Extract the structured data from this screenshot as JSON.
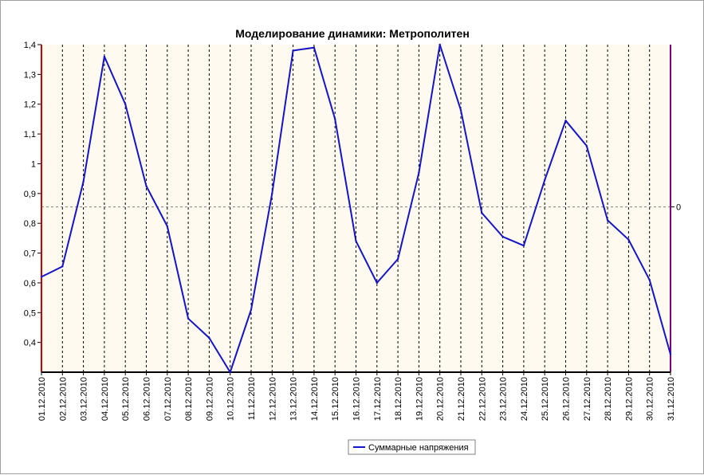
{
  "chart_data": {
    "type": "line",
    "title": "Моделирование динамики: Метрополитен",
    "xlabel": "",
    "ylabel": "",
    "ylim": [
      0.3,
      1.4
    ],
    "yticks": [
      "0,4",
      "0,5",
      "0,6",
      "0,7",
      "0,8",
      "0,9",
      "1",
      "1,1",
      "1,2",
      "1,3",
      "1,4"
    ],
    "reference_line": {
      "value": 0.855,
      "label": "0"
    },
    "grid": true,
    "legend_position": "bottom-center",
    "categories": [
      "01.12.2010",
      "02.12.2010",
      "03.12.2010",
      "04.12.2010",
      "05.12.2010",
      "06.12.2010",
      "07.12.2010",
      "08.12.2010",
      "09.12.2010",
      "10.12.2010",
      "11.12.2010",
      "12.12.2010",
      "13.12.2010",
      "14.12.2010",
      "15.12.2010",
      "16.12.2010",
      "17.12.2010",
      "18.12.2010",
      "19.12.2010",
      "20.12.2010",
      "21.12.2010",
      "22.12.2010",
      "23.12.2010",
      "24.12.2010",
      "25.12.2010",
      "26.12.2010",
      "27.12.2010",
      "28.12.2010",
      "29.12.2010",
      "30.12.2010",
      "31.12.2010"
    ],
    "series": [
      {
        "name": "Суммарные напряжения",
        "values": [
          0.62,
          0.655,
          0.94,
          1.36,
          1.2,
          0.925,
          0.79,
          0.48,
          0.415,
          0.3,
          0.51,
          0.9,
          1.38,
          1.39,
          1.15,
          0.74,
          0.6,
          0.68,
          0.97,
          1.4,
          1.18,
          0.835,
          0.755,
          0.725,
          0.945,
          1.145,
          1.06,
          0.81,
          0.745,
          0.61,
          0.36
        ]
      }
    ],
    "colors": {
      "line": "#1414c8",
      "plot_background": "#fffaef",
      "left_axis": "#d00000",
      "right_axis": "#800080",
      "reference_line": "#808080"
    }
  }
}
